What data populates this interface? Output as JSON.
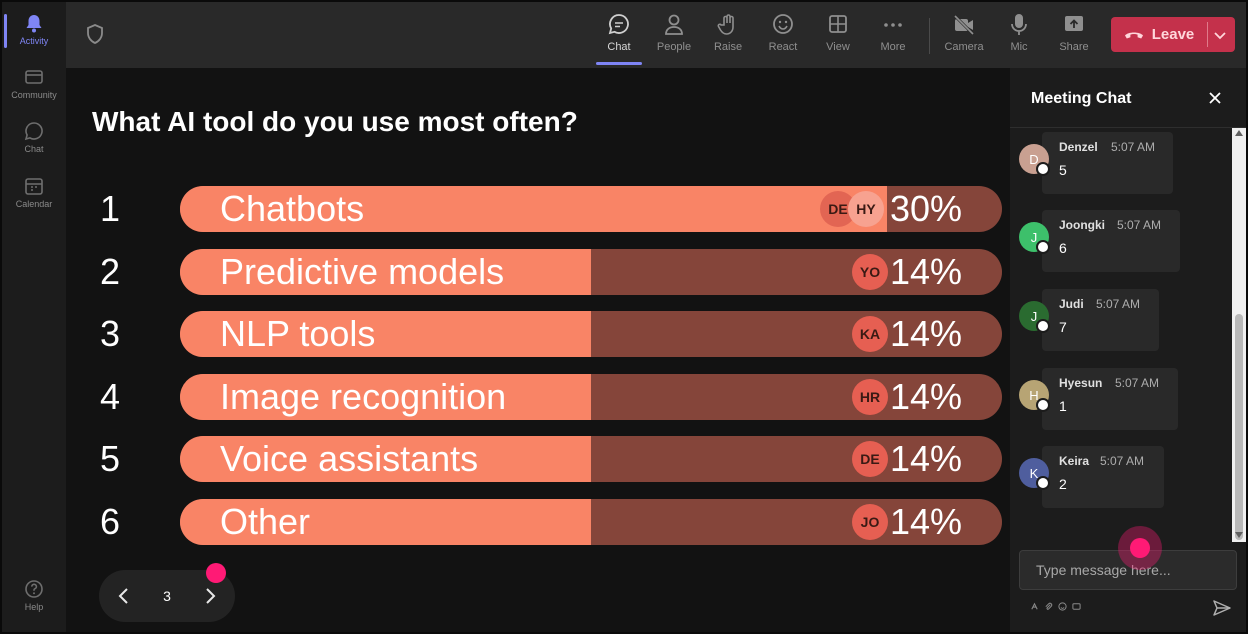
{
  "rail": {
    "items": [
      {
        "label": "Activity",
        "icon": "bell-icon"
      },
      {
        "label": "Community",
        "icon": "community-icon"
      },
      {
        "label": "Chat",
        "icon": "chat-icon"
      },
      {
        "label": "Calendar",
        "icon": "calendar-icon"
      }
    ],
    "help": {
      "label": "Help",
      "icon": "help-icon"
    }
  },
  "toolbar": {
    "buttons": [
      {
        "label": "Chat",
        "icon": "chat-icon"
      },
      {
        "label": "People",
        "icon": "people-icon"
      },
      {
        "label": "Raise",
        "icon": "hand-icon"
      },
      {
        "label": "React",
        "icon": "smiley-icon"
      },
      {
        "label": "View",
        "icon": "grid-icon"
      },
      {
        "label": "More",
        "icon": "more-icon"
      },
      {
        "label": "Camera",
        "icon": "camera-off-icon"
      },
      {
        "label": "Mic",
        "icon": "mic-icon"
      },
      {
        "label": "Share",
        "icon": "share-icon"
      }
    ],
    "leave_label": "Leave"
  },
  "poll": {
    "question": "What AI tool do you use most often?",
    "options": [
      {
        "number": "1",
        "label": "Chatbots",
        "percent": "30%",
        "fill": 0.86,
        "voters": [
          "DE",
          "HY"
        ]
      },
      {
        "number": "2",
        "label": "Predictive models",
        "percent": "14%",
        "fill": 0.5,
        "voters": [
          "YO"
        ]
      },
      {
        "number": "3",
        "label": "NLP tools",
        "percent": "14%",
        "fill": 0.5,
        "voters": [
          "KA"
        ]
      },
      {
        "number": "4",
        "label": "Image recognition",
        "percent": "14%",
        "fill": 0.5,
        "voters": [
          "HR"
        ]
      },
      {
        "number": "5",
        "label": "Voice assistants",
        "percent": "14%",
        "fill": 0.5,
        "voters": [
          "DE"
        ]
      },
      {
        "number": "6",
        "label": "Other",
        "percent": "14%",
        "fill": 0.5,
        "voters": [
          "JO"
        ]
      }
    ],
    "page": "3"
  },
  "chat": {
    "title": "Meeting Chat",
    "messages": [
      {
        "initial": "D",
        "name": "Denzel",
        "time": "5:07 AM",
        "text": "5",
        "avatar_color": "#c9a091"
      },
      {
        "initial": "J",
        "name": "Joongki",
        "time": "5:07 AM",
        "text": "6",
        "avatar_color": "#3dc06b"
      },
      {
        "initial": "J",
        "name": "Judi",
        "time": "5:07 AM",
        "text": "7",
        "avatar_color": "#2a6b30"
      },
      {
        "initial": "H",
        "name": "Hyesun",
        "time": "5:07 AM",
        "text": "1",
        "avatar_color": "#b7a474"
      },
      {
        "initial": "K",
        "name": "Keira",
        "time": "5:07 AM",
        "text": "2",
        "avatar_color": "#4f5e9e"
      }
    ],
    "input_placeholder": "Type message here..."
  },
  "colors": {
    "accent": "#7f85f5",
    "bar_fill": "#f98466",
    "bar_track": "#85453a",
    "leave": "#c4314b",
    "cursor_dot": "#ff1a75"
  }
}
